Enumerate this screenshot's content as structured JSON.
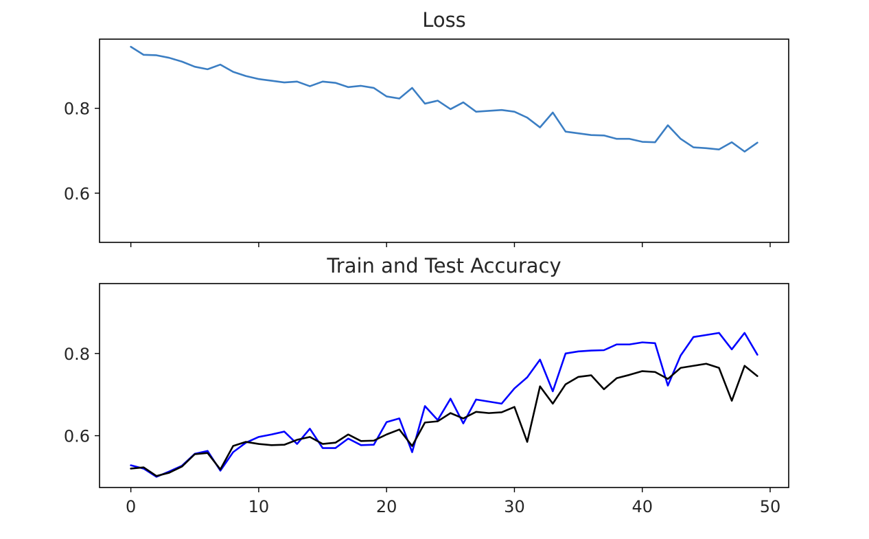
{
  "chart_data": [
    {
      "type": "line",
      "title": "Loss",
      "xlabel": "",
      "ylabel": "",
      "xlim": [
        -2.45,
        51.45
      ],
      "ylim": [
        0.484,
        0.963
      ],
      "xticks": [
        0,
        10,
        20,
        30,
        40,
        50
      ],
      "show_xtick_labels": false,
      "yticks": [
        0.6,
        0.8
      ],
      "ytick_labels": [
        "0.6",
        "0.8"
      ],
      "grid": false,
      "series": [
        {
          "color": "#3b7ec3",
          "x": [
            0,
            1,
            2,
            3,
            4,
            5,
            6,
            7,
            8,
            9,
            10,
            11,
            12,
            13,
            14,
            15,
            16,
            17,
            18,
            19,
            20,
            21,
            22,
            23,
            24,
            25,
            26,
            27,
            28,
            29,
            30,
            31,
            32,
            33,
            34,
            35,
            36,
            37,
            38,
            39,
            40,
            41,
            42,
            43,
            44,
            45,
            46,
            47,
            48,
            49
          ],
          "y": [
            0.945,
            0.926,
            0.925,
            0.919,
            0.91,
            0.898,
            0.892,
            0.903,
            0.886,
            0.876,
            0.869,
            0.865,
            0.861,
            0.863,
            0.852,
            0.863,
            0.86,
            0.85,
            0.853,
            0.848,
            0.828,
            0.823,
            0.848,
            0.811,
            0.818,
            0.798,
            0.814,
            0.792,
            0.794,
            0.796,
            0.792,
            0.778,
            0.755,
            0.79,
            0.745,
            0.741,
            0.737,
            0.736,
            0.728,
            0.728,
            0.721,
            0.72,
            0.76,
            0.728,
            0.708,
            0.706,
            0.703,
            0.72,
            0.698,
            0.719
          ]
        }
      ]
    },
    {
      "type": "line",
      "title": "Train and Test Accuracy",
      "xlabel": "",
      "ylabel": "",
      "xlim": [
        -2.45,
        51.45
      ],
      "ylim": [
        0.474,
        0.97
      ],
      "xticks": [
        0,
        10,
        20,
        30,
        40,
        50
      ],
      "xtick_labels": [
        "0",
        "10",
        "20",
        "30",
        "40",
        "50"
      ],
      "yticks": [
        0.6,
        0.8
      ],
      "ytick_labels": [
        "0.6",
        "0.8"
      ],
      "grid": false,
      "series": [
        {
          "color": "#0000ff",
          "x": [
            0,
            1,
            2,
            3,
            4,
            5,
            6,
            7,
            8,
            9,
            10,
            11,
            12,
            13,
            14,
            15,
            16,
            17,
            18,
            19,
            20,
            21,
            22,
            23,
            24,
            25,
            26,
            27,
            28,
            29,
            30,
            31,
            32,
            33,
            34,
            35,
            36,
            37,
            38,
            39,
            40,
            41,
            42,
            43,
            44,
            45,
            46,
            47,
            48,
            49
          ],
          "y": [
            0.528,
            0.52,
            0.5,
            0.513,
            0.527,
            0.556,
            0.563,
            0.515,
            0.56,
            0.583,
            0.597,
            0.603,
            0.61,
            0.58,
            0.617,
            0.57,
            0.57,
            0.593,
            0.577,
            0.578,
            0.633,
            0.642,
            0.56,
            0.672,
            0.638,
            0.69,
            0.63,
            0.688,
            0.683,
            0.678,
            0.715,
            0.742,
            0.785,
            0.708,
            0.8,
            0.805,
            0.807,
            0.808,
            0.822,
            0.822,
            0.827,
            0.825,
            0.722,
            0.795,
            0.84,
            0.845,
            0.85,
            0.81,
            0.85,
            0.797
          ]
        },
        {
          "color": "#000000",
          "x": [
            0,
            1,
            2,
            3,
            4,
            5,
            6,
            7,
            8,
            9,
            10,
            11,
            12,
            13,
            14,
            15,
            16,
            17,
            18,
            19,
            20,
            21,
            22,
            23,
            24,
            25,
            26,
            27,
            28,
            29,
            30,
            31,
            32,
            33,
            34,
            35,
            36,
            37,
            38,
            39,
            40,
            41,
            42,
            43,
            44,
            45,
            46,
            47,
            48,
            49
          ],
          "y": [
            0.52,
            0.523,
            0.502,
            0.51,
            0.525,
            0.555,
            0.558,
            0.518,
            0.575,
            0.585,
            0.58,
            0.577,
            0.578,
            0.59,
            0.597,
            0.58,
            0.583,
            0.603,
            0.587,
            0.588,
            0.603,
            0.615,
            0.575,
            0.632,
            0.635,
            0.655,
            0.642,
            0.658,
            0.655,
            0.657,
            0.67,
            0.585,
            0.72,
            0.678,
            0.725,
            0.743,
            0.747,
            0.713,
            0.74,
            0.748,
            0.757,
            0.755,
            0.738,
            0.765,
            0.77,
            0.775,
            0.765,
            0.685,
            0.77,
            0.745
          ]
        }
      ]
    }
  ]
}
